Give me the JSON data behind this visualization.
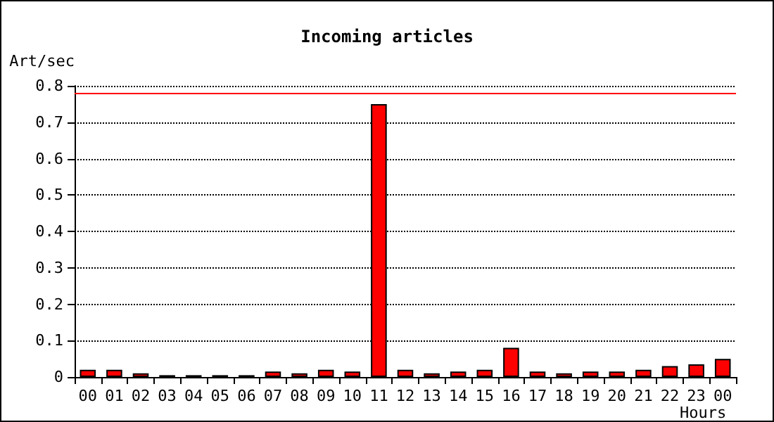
{
  "chart_data": {
    "type": "bar",
    "title": "Incoming articles",
    "xlabel": "Hours",
    "ylabel": "Art/sec",
    "categories": [
      "00",
      "01",
      "02",
      "03",
      "04",
      "05",
      "06",
      "07",
      "08",
      "09",
      "10",
      "11",
      "12",
      "13",
      "14",
      "15",
      "16",
      "17",
      "18",
      "19",
      "20",
      "21",
      "22",
      "23",
      "00"
    ],
    "values": [
      0.02,
      0.02,
      0.01,
      0.005,
      0.005,
      0.005,
      0.005,
      0.015,
      0.01,
      0.02,
      0.015,
      0.75,
      0.02,
      0.01,
      0.015,
      0.02,
      0.08,
      0.015,
      0.01,
      0.015,
      0.015,
      0.02,
      0.03,
      0.035,
      0.05
    ],
    "color": "#ff0000",
    "ylim": [
      0,
      0.8
    ],
    "yticks": [
      0,
      0.1,
      0.2,
      0.3,
      0.4,
      0.5,
      0.6,
      0.7,
      0.8
    ],
    "grid": "y",
    "ref_lines": [
      {
        "axis": "y",
        "value": 0.78,
        "color": "#ff0000",
        "line_style": "solid"
      }
    ]
  }
}
